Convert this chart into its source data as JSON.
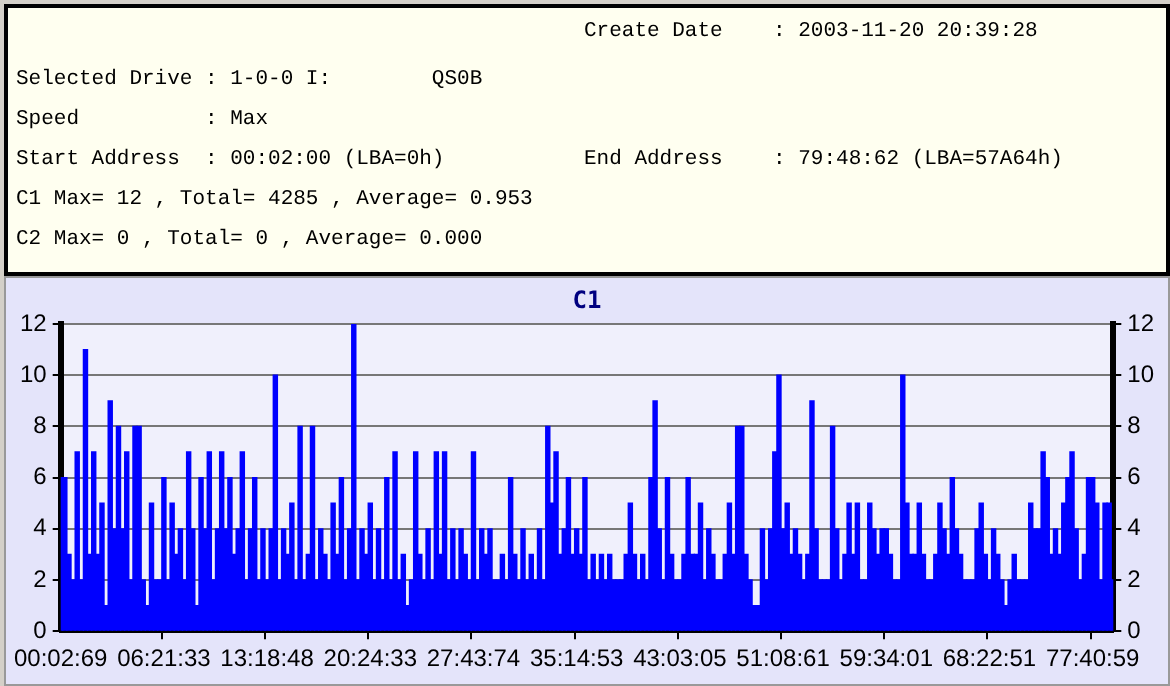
{
  "chart_data": {
    "type": "bar",
    "title": "C1",
    "annotations": [
      "Create Date    : 2003-11-20 20:39:28",
      "Selected Drive : 1-0-0 I:        QS0B",
      "Speed          : Max",
      "Start Address  : 00:02:00 (LBA=0h)",
      "End Address    : 79:48:62 (LBA=57A64h)",
      "C1 Max= 12 , Total= 4285 , Average= 0.953",
      "C2 Max= 0 , Total= 0 , Average= 0.000"
    ],
    "categories": [
      "00:02:69",
      null,
      null,
      null,
      null,
      null,
      null,
      null,
      null,
      null,
      null,
      null,
      null,
      null,
      null,
      null,
      null,
      null,
      null,
      null,
      null,
      null,
      null,
      null,
      null,
      "06:21:33",
      null,
      null,
      null,
      null,
      null,
      null,
      null,
      null,
      null,
      null,
      null,
      null,
      null,
      null,
      null,
      null,
      null,
      null,
      null,
      null,
      null,
      null,
      null,
      null,
      "13:18:48",
      null,
      null,
      null,
      null,
      null,
      null,
      null,
      null,
      null,
      null,
      null,
      null,
      null,
      null,
      null,
      null,
      null,
      null,
      null,
      null,
      null,
      null,
      null,
      null,
      "20:24:33",
      null,
      null,
      null,
      null,
      null,
      null,
      null,
      null,
      null,
      null,
      null,
      null,
      null,
      null,
      null,
      null,
      null,
      null,
      null,
      null,
      null,
      null,
      null,
      null,
      "27:43:74",
      null,
      null,
      null,
      null,
      null,
      null,
      null,
      null,
      null,
      null,
      null,
      null,
      null,
      null,
      null,
      null,
      null,
      null,
      null,
      null,
      null,
      null,
      null,
      null,
      "35:14:53",
      null,
      null,
      null,
      null,
      null,
      null,
      null,
      null,
      null,
      null,
      null,
      null,
      null,
      null,
      null,
      null,
      null,
      null,
      null,
      null,
      null,
      null,
      null,
      null,
      "43:03:05",
      null,
      null,
      null,
      null,
      null,
      null,
      null,
      null,
      null,
      null,
      null,
      null,
      null,
      null,
      null,
      null,
      null,
      null,
      null,
      null,
      null,
      null,
      null,
      null,
      "51:08:61",
      null,
      null,
      null,
      null,
      null,
      null,
      null,
      null,
      null,
      null,
      null,
      null,
      null,
      null,
      null,
      null,
      null,
      null,
      null,
      null,
      null,
      null,
      null,
      null,
      "59:34:01",
      null,
      null,
      null,
      null,
      null,
      null,
      null,
      null,
      null,
      null,
      null,
      null,
      null,
      null,
      null,
      null,
      null,
      null,
      null,
      null,
      null,
      null,
      null,
      null,
      "68:22:51",
      null,
      null,
      null,
      null,
      null,
      null,
      null,
      null,
      null,
      null,
      null,
      null,
      null,
      null,
      null,
      null,
      null,
      null,
      null,
      null,
      null,
      null,
      null,
      null,
      "77:40:59",
      null,
      null,
      null,
      null,
      null
    ],
    "values": [
      6,
      6,
      3,
      2,
      7,
      2,
      11,
      3,
      7,
      3,
      5,
      1,
      9,
      4,
      8,
      4,
      7,
      2,
      8,
      8,
      2,
      1,
      5,
      2,
      2,
      6,
      2,
      5,
      3,
      4,
      2,
      7,
      4,
      1,
      6,
      4,
      7,
      2,
      4,
      7,
      4,
      6,
      3,
      4,
      7,
      2,
      4,
      6,
      2,
      4,
      2,
      4,
      10,
      2,
      4,
      3,
      5,
      2,
      8,
      2,
      3,
      8,
      2,
      4,
      3,
      2,
      5,
      3,
      6,
      2,
      4,
      12,
      2,
      4,
      3,
      5,
      2,
      4,
      2,
      6,
      2,
      7,
      2,
      3,
      1,
      2,
      7,
      3,
      2,
      4,
      2,
      7,
      3,
      7,
      2,
      4,
      2,
      4,
      3,
      2,
      7,
      2,
      4,
      3,
      4,
      2,
      2,
      3,
      2,
      6,
      3,
      2,
      4,
      2,
      3,
      2,
      4,
      2,
      8,
      5,
      7,
      3,
      4,
      6,
      3,
      4,
      3,
      6,
      2,
      3,
      2,
      3,
      2,
      3,
      2,
      2,
      2,
      3,
      5,
      3,
      2,
      3,
      2,
      6,
      9,
      4,
      2,
      6,
      3,
      2,
      2,
      3,
      6,
      3,
      3,
      5,
      2,
      4,
      3,
      2,
      2,
      3,
      5,
      3,
      8,
      8,
      3,
      2,
      1,
      1,
      4,
      2,
      4,
      7,
      10,
      4,
      5,
      3,
      4,
      3,
      2,
      3,
      9,
      4,
      2,
      2,
      2,
      8,
      4,
      2,
      3,
      5,
      3,
      5,
      2,
      2,
      5,
      4,
      3,
      4,
      4,
      3,
      2,
      2,
      10,
      5,
      3,
      3,
      5,
      3,
      2,
      2,
      3,
      5,
      4,
      3,
      6,
      4,
      3,
      2,
      2,
      2,
      4,
      5,
      3,
      2,
      4,
      3,
      2,
      1,
      2,
      3,
      2,
      2,
      2,
      5,
      4,
      4,
      7,
      6,
      3,
      4,
      3,
      5,
      6,
      7,
      4,
      2,
      3,
      6,
      6,
      5,
      2,
      5,
      5,
      2
    ],
    "color": "#0000ff",
    "ylim": [
      0,
      12
    ],
    "yticks": [
      0,
      2,
      4,
      6,
      8,
      10,
      12
    ],
    "y2lim": [
      0,
      12
    ],
    "y2ticks": [
      0,
      2,
      4,
      6,
      8,
      10,
      12
    ],
    "grid": "y",
    "legend": false
  }
}
